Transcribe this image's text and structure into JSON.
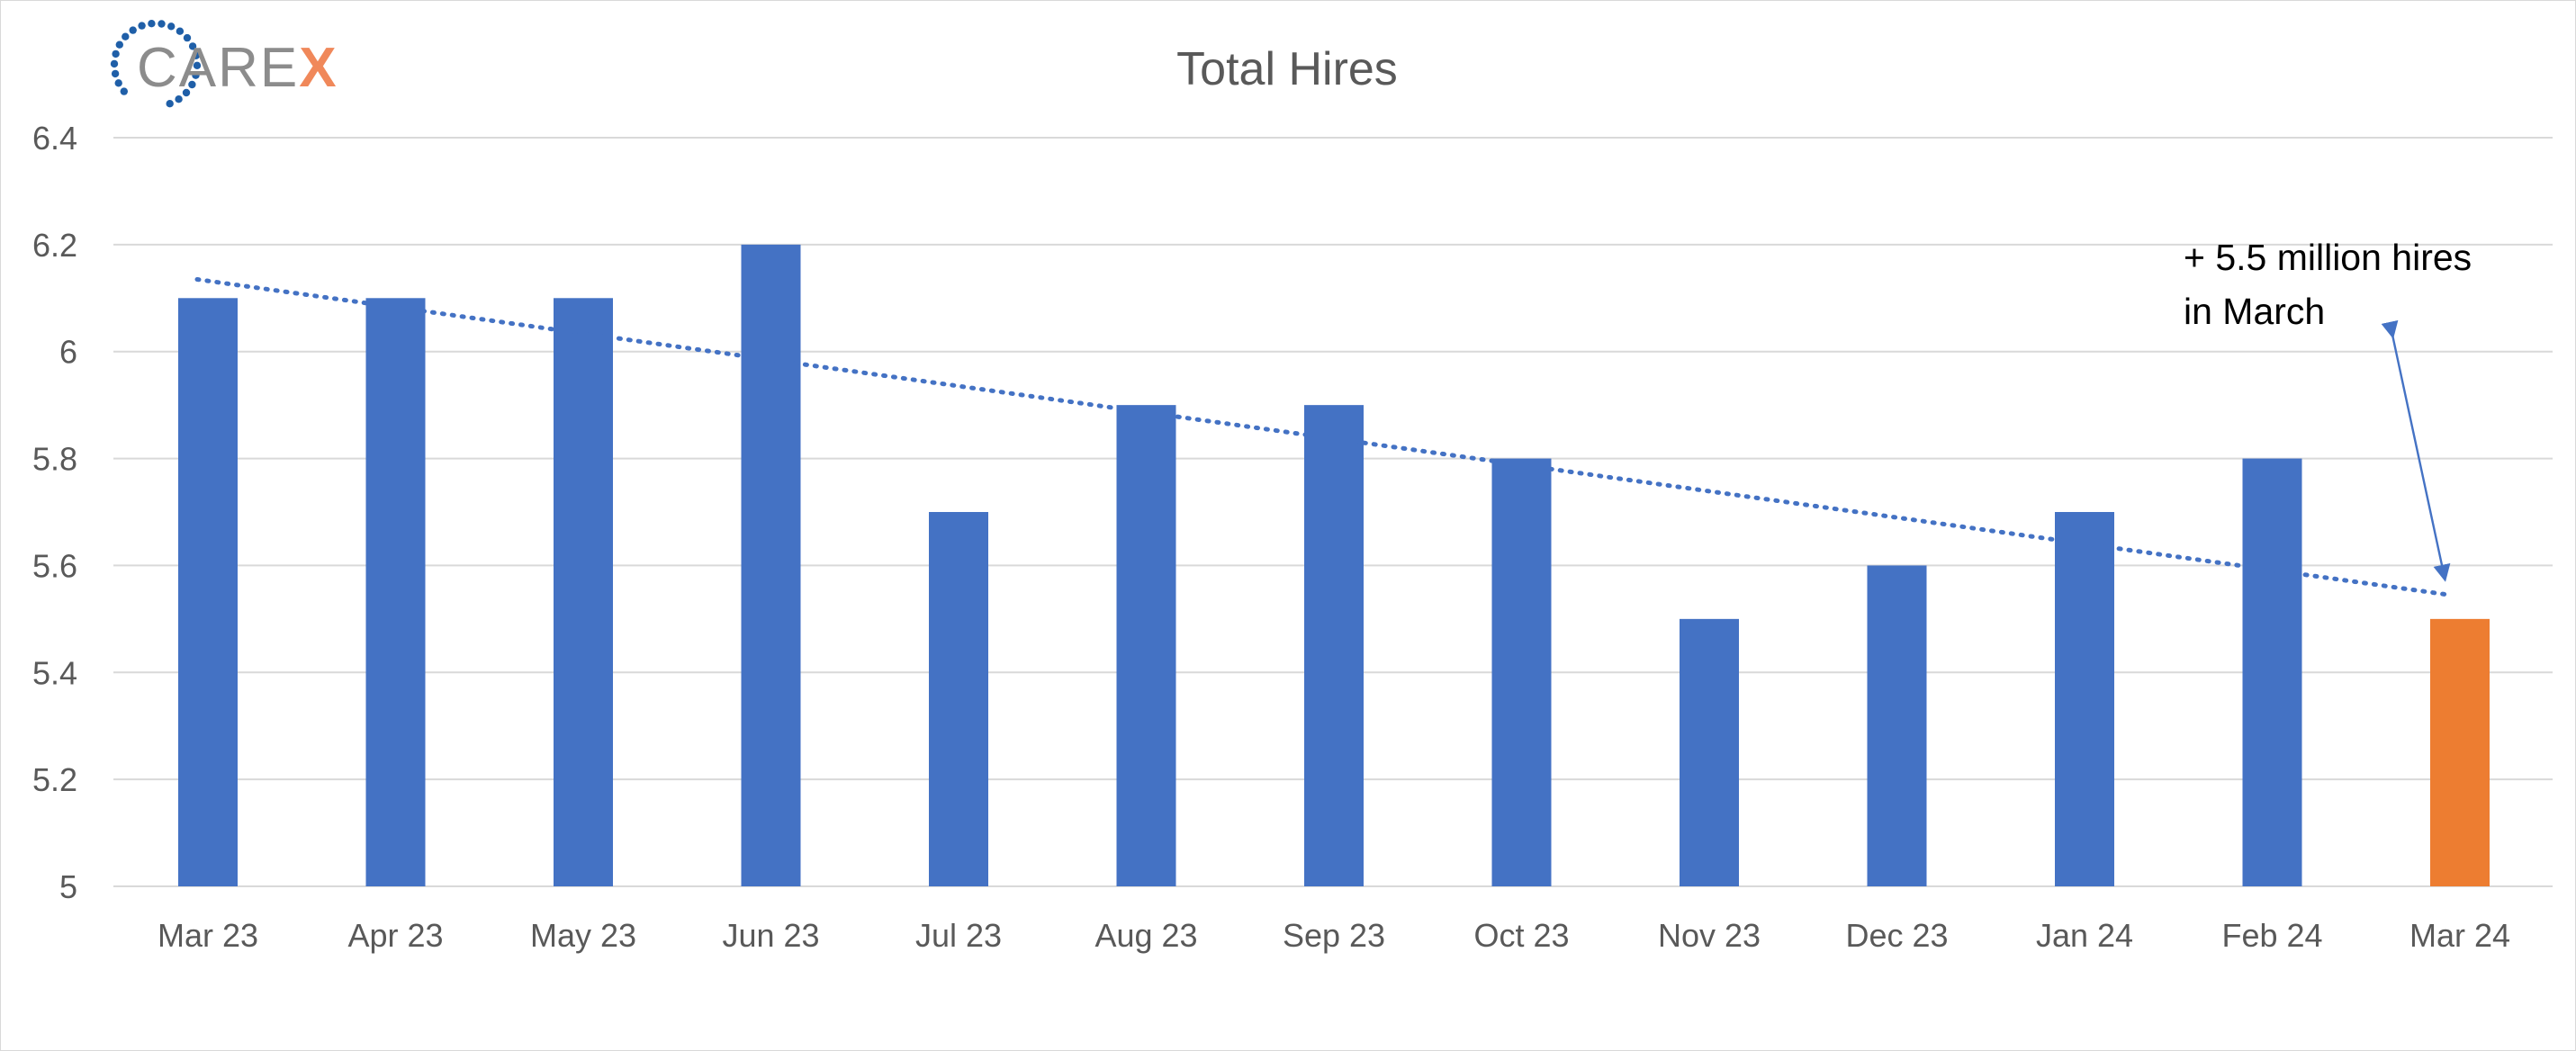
{
  "logo": {
    "text_main": "CARE",
    "text_accent": "X"
  },
  "chart_data": {
    "type": "bar",
    "title": "Total Hires",
    "xlabel": "",
    "ylabel": "",
    "categories": [
      "Mar 23",
      "Apr 23",
      "May 23",
      "Jun 23",
      "Jul 23",
      "Aug 23",
      "Sep 23",
      "Oct 23",
      "Nov 23",
      "Dec 23",
      "Jan 24",
      "Feb 24",
      "Mar 24"
    ],
    "series": [
      {
        "values": [
          6.1,
          6.1,
          6.1,
          6.2,
          5.7,
          5.9,
          5.9,
          5.8,
          5.5,
          5.6,
          5.7,
          5.8,
          5.5
        ]
      }
    ],
    "highlight_index": 12,
    "trendline": {
      "style": "dotted",
      "type": "linear",
      "start": 6.135,
      "end": 5.545
    },
    "ylim": [
      5,
      6.4
    ],
    "yticks": [
      5,
      5.2,
      5.4,
      5.6,
      5.8,
      6,
      6.2,
      6.4
    ],
    "ytick_labels": [
      "5",
      "5.2",
      "5.4",
      "5.6",
      "5.8",
      "6",
      "6.2",
      "6.4"
    ],
    "grid": true,
    "legend": "none",
    "annotation": {
      "lines": [
        "+ 5.5 million hires",
        "in March"
      ],
      "target_category": "Mar 24"
    },
    "colors": {
      "bar": "#4472c4",
      "highlight": "#ed7d31",
      "trend": "#4472c4",
      "grid": "#d9d9d9",
      "arrow": "#4472c4"
    }
  }
}
